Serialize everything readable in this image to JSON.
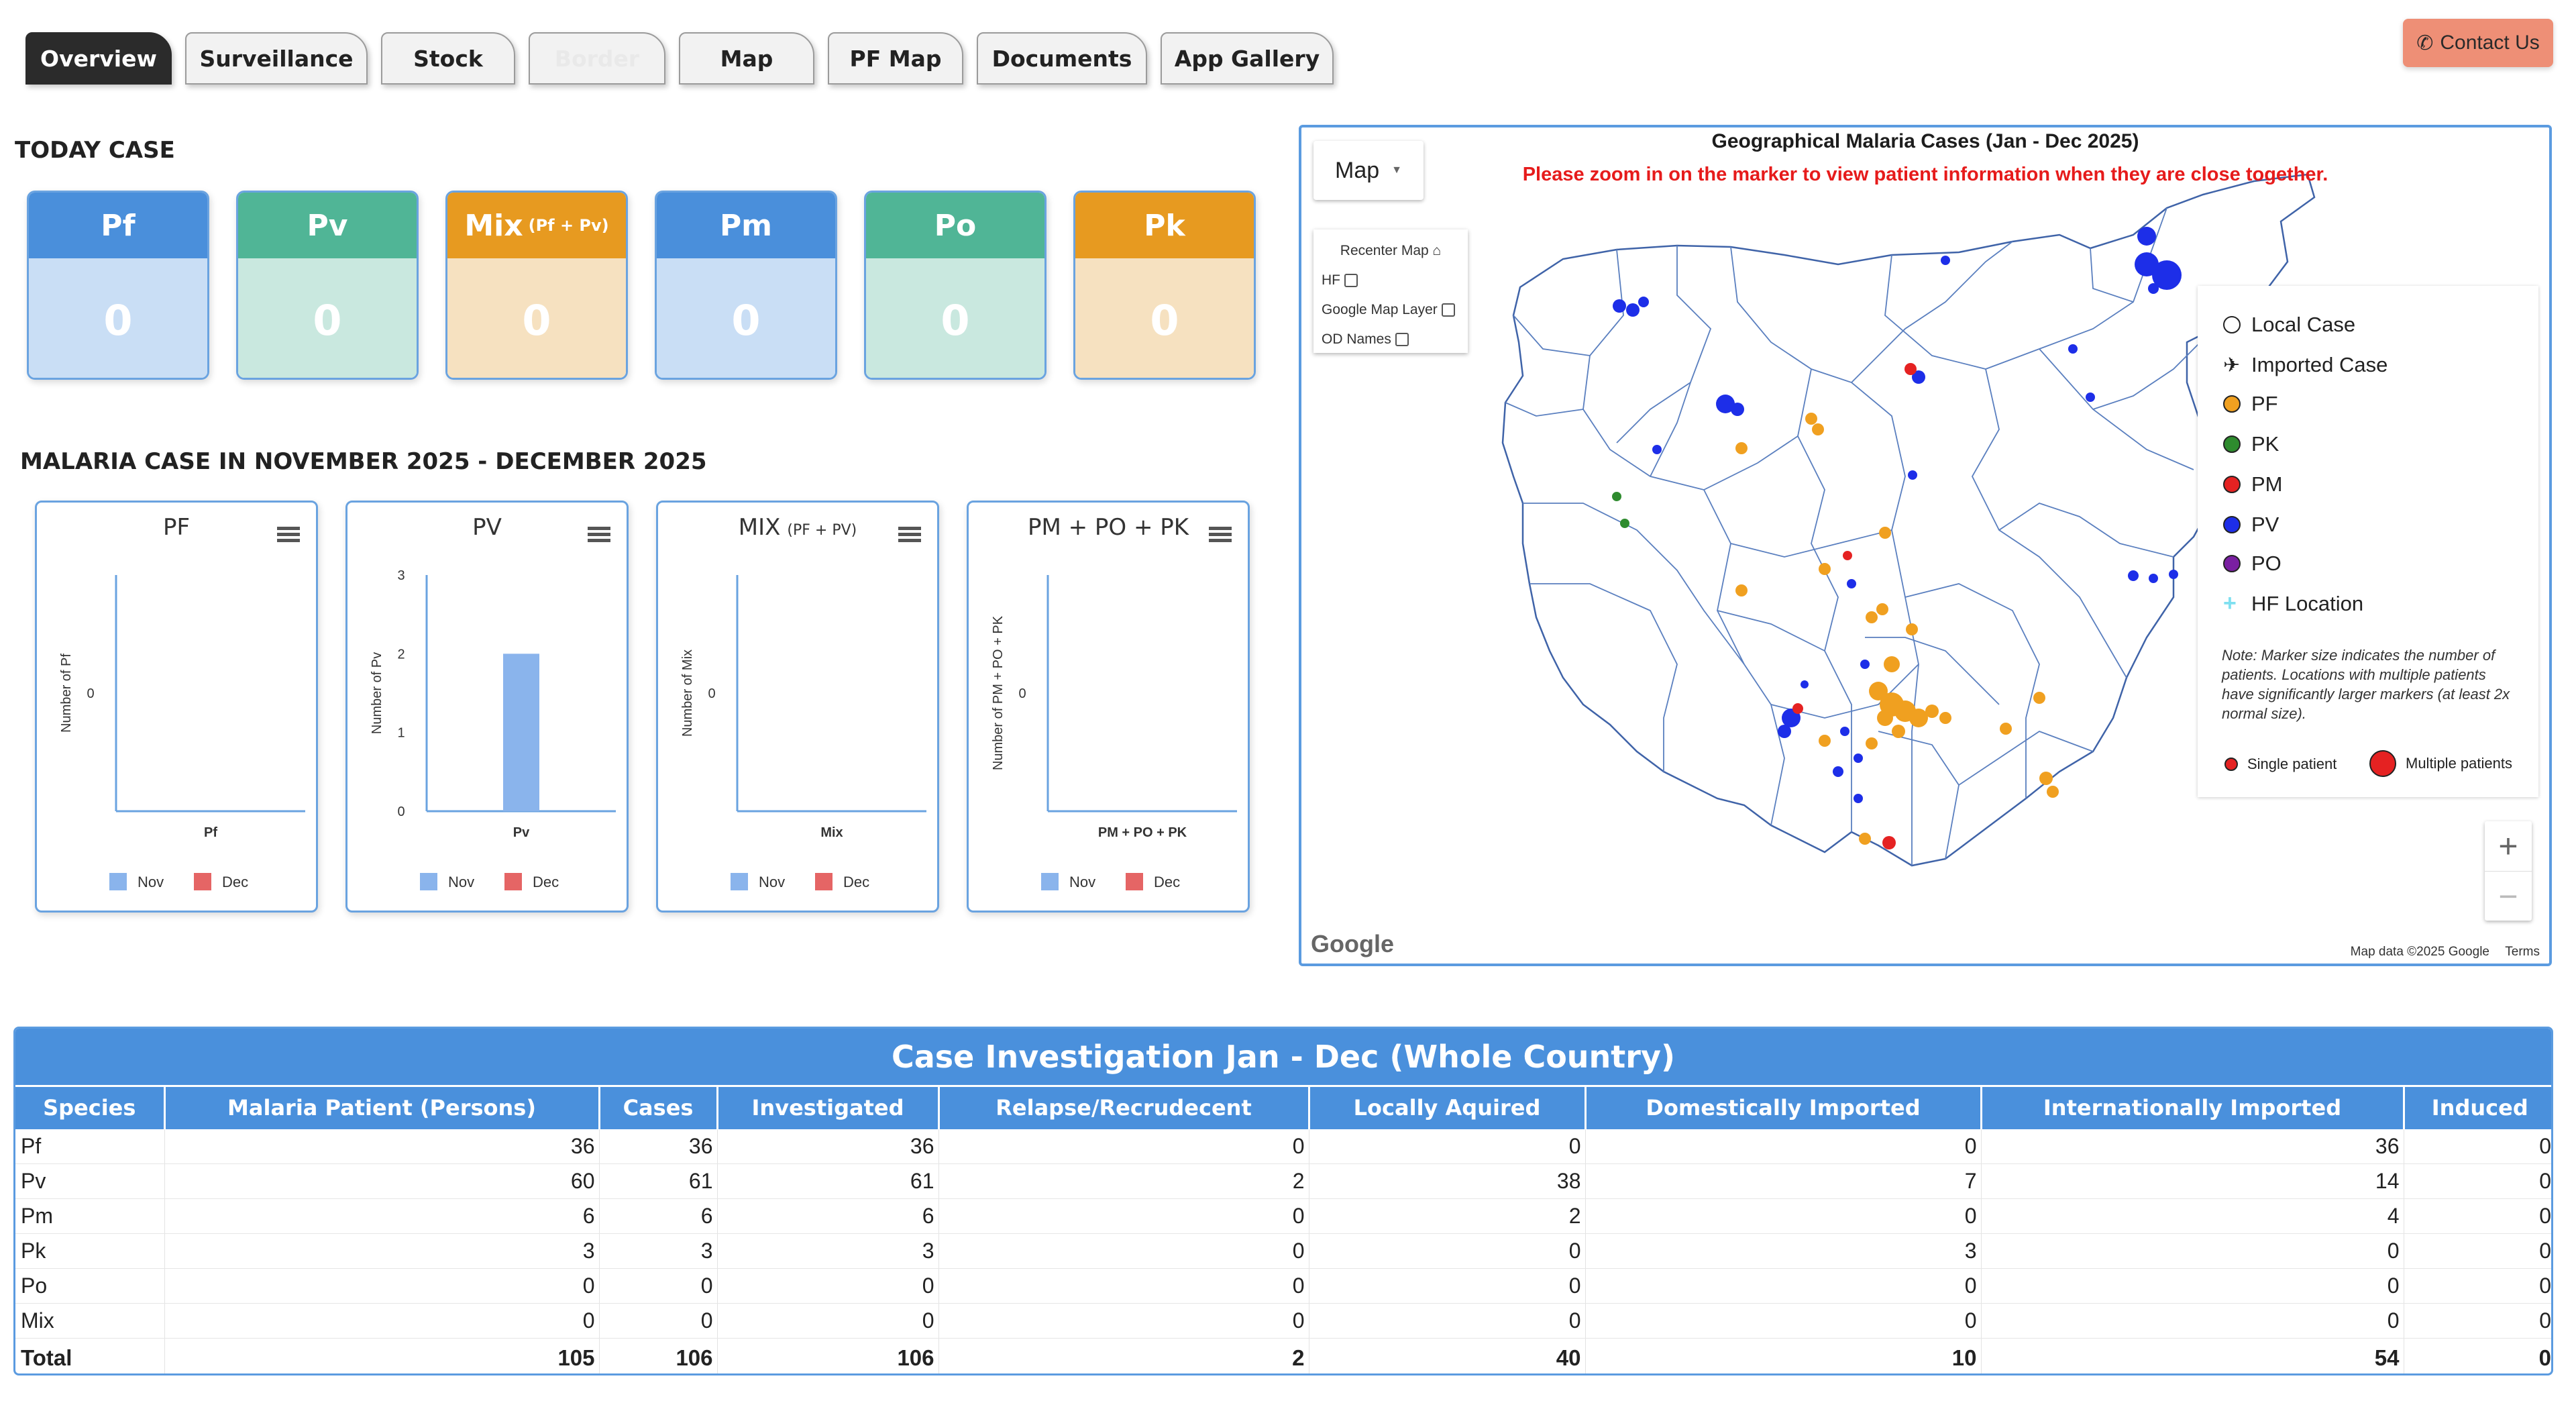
{
  "tabs": [
    "Overview",
    "Surveillance",
    "Stock",
    "Border",
    "Map",
    "PF Map",
    "Documents",
    "App Gallery"
  ],
  "contact_label": "Contact Us",
  "today": {
    "title": "TODAY CASE",
    "cards": [
      {
        "label": "Pf",
        "sub": "",
        "value": "0",
        "color": "blue"
      },
      {
        "label": "Pv",
        "sub": "",
        "value": "0",
        "color": "green"
      },
      {
        "label": "Mix",
        "sub": "(Pf + Pv)",
        "value": "0",
        "color": "orange"
      },
      {
        "label": "Pm",
        "sub": "",
        "value": "0",
        "color": "blue"
      },
      {
        "label": "Po",
        "sub": "",
        "value": "0",
        "color": "green"
      },
      {
        "label": "Pk",
        "sub": "",
        "value": "0",
        "color": "orange"
      }
    ]
  },
  "monthly": {
    "title": "MALARIA CASE IN NOVEMBER 2025 - DECEMBER 2025"
  },
  "chart_data": [
    {
      "type": "bar",
      "title": "PF",
      "subtitle": "",
      "xlabel": "Pf",
      "ylabel": "Number of Pf",
      "categories": [
        "Pf"
      ],
      "yticks": [
        "0"
      ],
      "series": [
        {
          "name": "Nov",
          "values": [
            0
          ]
        },
        {
          "name": "Dec",
          "values": [
            0
          ]
        }
      ],
      "colors": [
        "#8ab4ec",
        "#e56565"
      ],
      "legend": "bottom"
    },
    {
      "type": "bar",
      "title": "PV",
      "subtitle": "",
      "xlabel": "Pv",
      "ylabel": "Number of Pv",
      "categories": [
        "Pv"
      ],
      "yticks": [
        "0",
        "1",
        "2",
        "3"
      ],
      "ylim": [
        0,
        3
      ],
      "series": [
        {
          "name": "Nov",
          "values": [
            2
          ]
        },
        {
          "name": "Dec",
          "values": [
            0
          ]
        }
      ],
      "colors": [
        "#8ab4ec",
        "#e56565"
      ],
      "legend": "bottom"
    },
    {
      "type": "bar",
      "title": "MIX",
      "subtitle": "(PF + PV)",
      "xlabel": "Mix",
      "ylabel": "Number of Mix",
      "categories": [
        "Mix"
      ],
      "yticks": [
        "0"
      ],
      "series": [
        {
          "name": "Nov",
          "values": [
            0
          ]
        },
        {
          "name": "Dec",
          "values": [
            0
          ]
        }
      ],
      "colors": [
        "#8ab4ec",
        "#e56565"
      ],
      "legend": "bottom"
    },
    {
      "type": "bar",
      "title": "PM + PO + PK",
      "subtitle": "",
      "xlabel": "PM + PO + PK",
      "ylabel": "Number of PM + PO + PK",
      "categories": [
        "PM + PO + PK"
      ],
      "yticks": [
        "0"
      ],
      "series": [
        {
          "name": "Nov",
          "values": [
            0
          ]
        },
        {
          "name": "Dec",
          "values": [
            0
          ]
        }
      ],
      "colors": [
        "#8ab4ec",
        "#e56565"
      ],
      "legend": "bottom"
    }
  ],
  "map": {
    "title": "Geographical Malaria Cases (Jan - Dec 2025)",
    "note": "Please zoom in on the marker to view patient information when they are close together.",
    "type_label": "Map",
    "layers": [
      "Recenter Map ⌂",
      "HF",
      "Google Map Layer",
      "OD Names"
    ],
    "legend": {
      "items": [
        {
          "label": "Local Case",
          "icon": "circle-outline-icon",
          "color": "#ffffff"
        },
        {
          "label": "Imported Case",
          "icon": "airplane-icon",
          "color": "#333333"
        },
        {
          "label": "PF",
          "icon": "dot-icon",
          "color": "#f0a020"
        },
        {
          "label": "PK",
          "icon": "dot-icon",
          "color": "#2e8b2e"
        },
        {
          "label": "PM",
          "icon": "dot-icon",
          "color": "#e52222"
        },
        {
          "label": "PV",
          "icon": "dot-icon",
          "color": "#1d2ee8"
        },
        {
          "label": "PO",
          "icon": "dot-icon",
          "color": "#7a1fa2"
        },
        {
          "label": "HF Location",
          "icon": "cross-icon",
          "color": "#7fe0f0"
        }
      ],
      "note": "Note: Marker size indicates the number of patients. Locations with multiple patients have significantly larger markers (at least 2x normal size).",
      "single": "Single patient",
      "multiple": "Multiple patients"
    },
    "footer": {
      "data": "Map data ©2025 Google",
      "terms": "Terms",
      "logo": "Google"
    }
  },
  "table": {
    "title": "Case Investigation Jan - Dec (Whole Country)",
    "columns": [
      "Species",
      "Malaria Patient (Persons)",
      "Cases",
      "Investigated",
      "Relapse/Recrudecent",
      "Locally Aquired",
      "Domestically Imported",
      "Internationally Imported",
      "Induced"
    ],
    "rows": [
      [
        "Pf",
        "36",
        "36",
        "36",
        "0",
        "0",
        "0",
        "36",
        "0"
      ],
      [
        "Pv",
        "60",
        "61",
        "61",
        "2",
        "38",
        "7",
        "14",
        "0"
      ],
      [
        "Pm",
        "6",
        "6",
        "6",
        "0",
        "2",
        "0",
        "4",
        "0"
      ],
      [
        "Pk",
        "3",
        "3",
        "3",
        "0",
        "0",
        "3",
        "0",
        "0"
      ],
      [
        "Po",
        "0",
        "0",
        "0",
        "0",
        "0",
        "0",
        "0",
        "0"
      ],
      [
        "Mix",
        "0",
        "0",
        "0",
        "0",
        "0",
        "0",
        "0",
        "0"
      ]
    ],
    "total": [
      "Total",
      "105",
      "106",
      "106",
      "2",
      "40",
      "10",
      "54",
      "0"
    ]
  }
}
